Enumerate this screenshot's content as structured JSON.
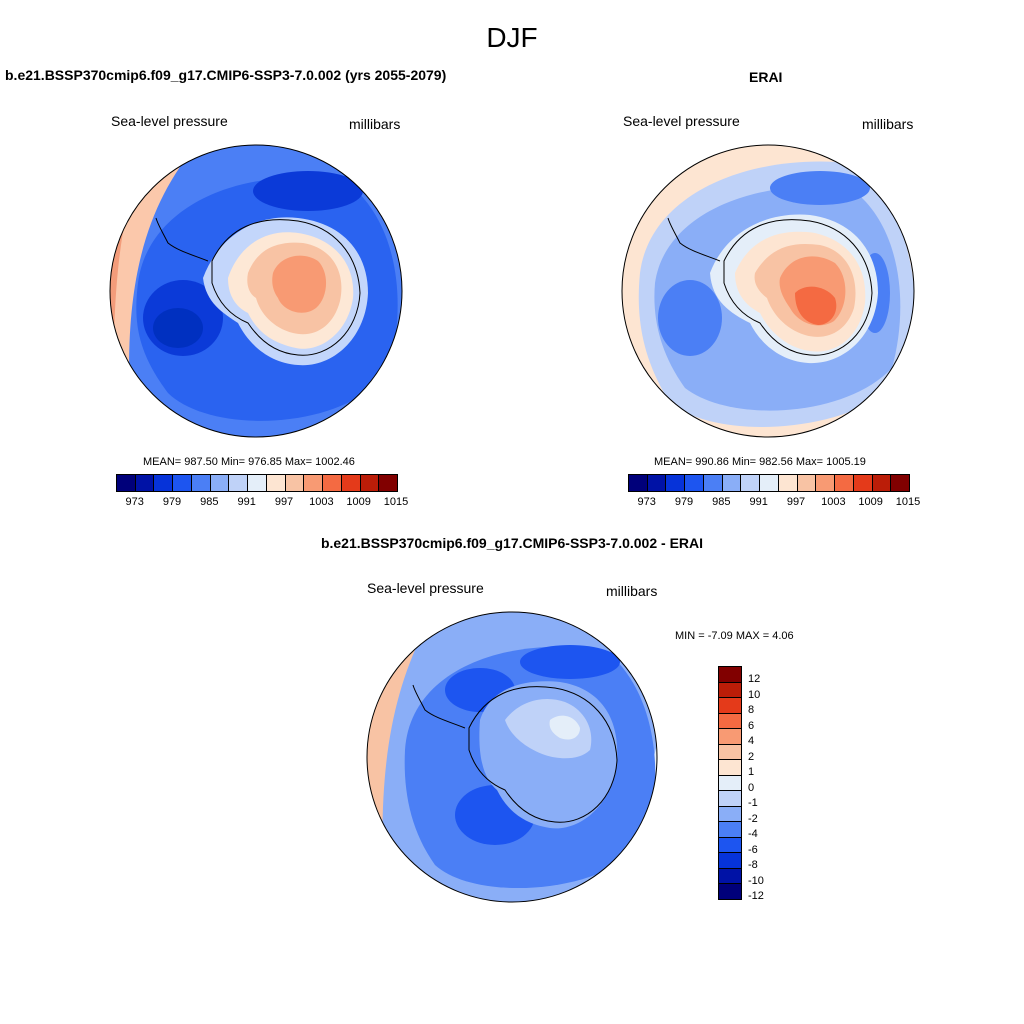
{
  "main_title": "DJF",
  "panel_left": {
    "title": "b.e21.BSSP370cmip6.f09_g17.CMIP6-SSP3-7.0.002 (yrs 2055-2079)",
    "variable": "Sea-level pressure",
    "units": "millibars",
    "stats": "MEAN= 987.50  Min= 976.85  Max= 1002.46"
  },
  "panel_right": {
    "title": "ERAI",
    "variable": "Sea-level pressure",
    "units": "millibars",
    "stats": "MEAN= 990.86  Min= 982.56  Max= 1005.19"
  },
  "panel_bottom": {
    "title": "b.e21.BSSP370cmip6.f09_g17.CMIP6-SSP3-7.0.002 - ERAI",
    "variable": "Sea-level pressure",
    "units": "millibars",
    "stats": "MIN =  -7.09 MAX =   4.06"
  },
  "colorbar_top": {
    "colors": [
      "#00007a",
      "#0012a6",
      "#0633d9",
      "#1d55f0",
      "#4b7ff5",
      "#8aaef7",
      "#bfd2f8",
      "#e4eef9",
      "#fde5d2",
      "#f8c3a4",
      "#f89a73",
      "#f46a42",
      "#e43a1a",
      "#bb1d08",
      "#810000"
    ],
    "ticks": [
      "973",
      "979",
      "985",
      "991",
      "997",
      "1003",
      "1009",
      "1015"
    ]
  },
  "colorbar_diff": {
    "colors": [
      "#810000",
      "#bb1d08",
      "#e43a1a",
      "#f46a42",
      "#f89a73",
      "#f8c3a4",
      "#fde5d2",
      "#e4eef9",
      "#bfd2f8",
      "#8aaef7",
      "#4b7ff5",
      "#1d55f0",
      "#0633d9",
      "#0012a6",
      "#00007a"
    ],
    "ticks": [
      "12",
      "10",
      "8",
      "6",
      "4",
      "2",
      "1",
      "0",
      "-1",
      "-2",
      "-4",
      "-6",
      "-8",
      "-10",
      "-12"
    ]
  }
}
